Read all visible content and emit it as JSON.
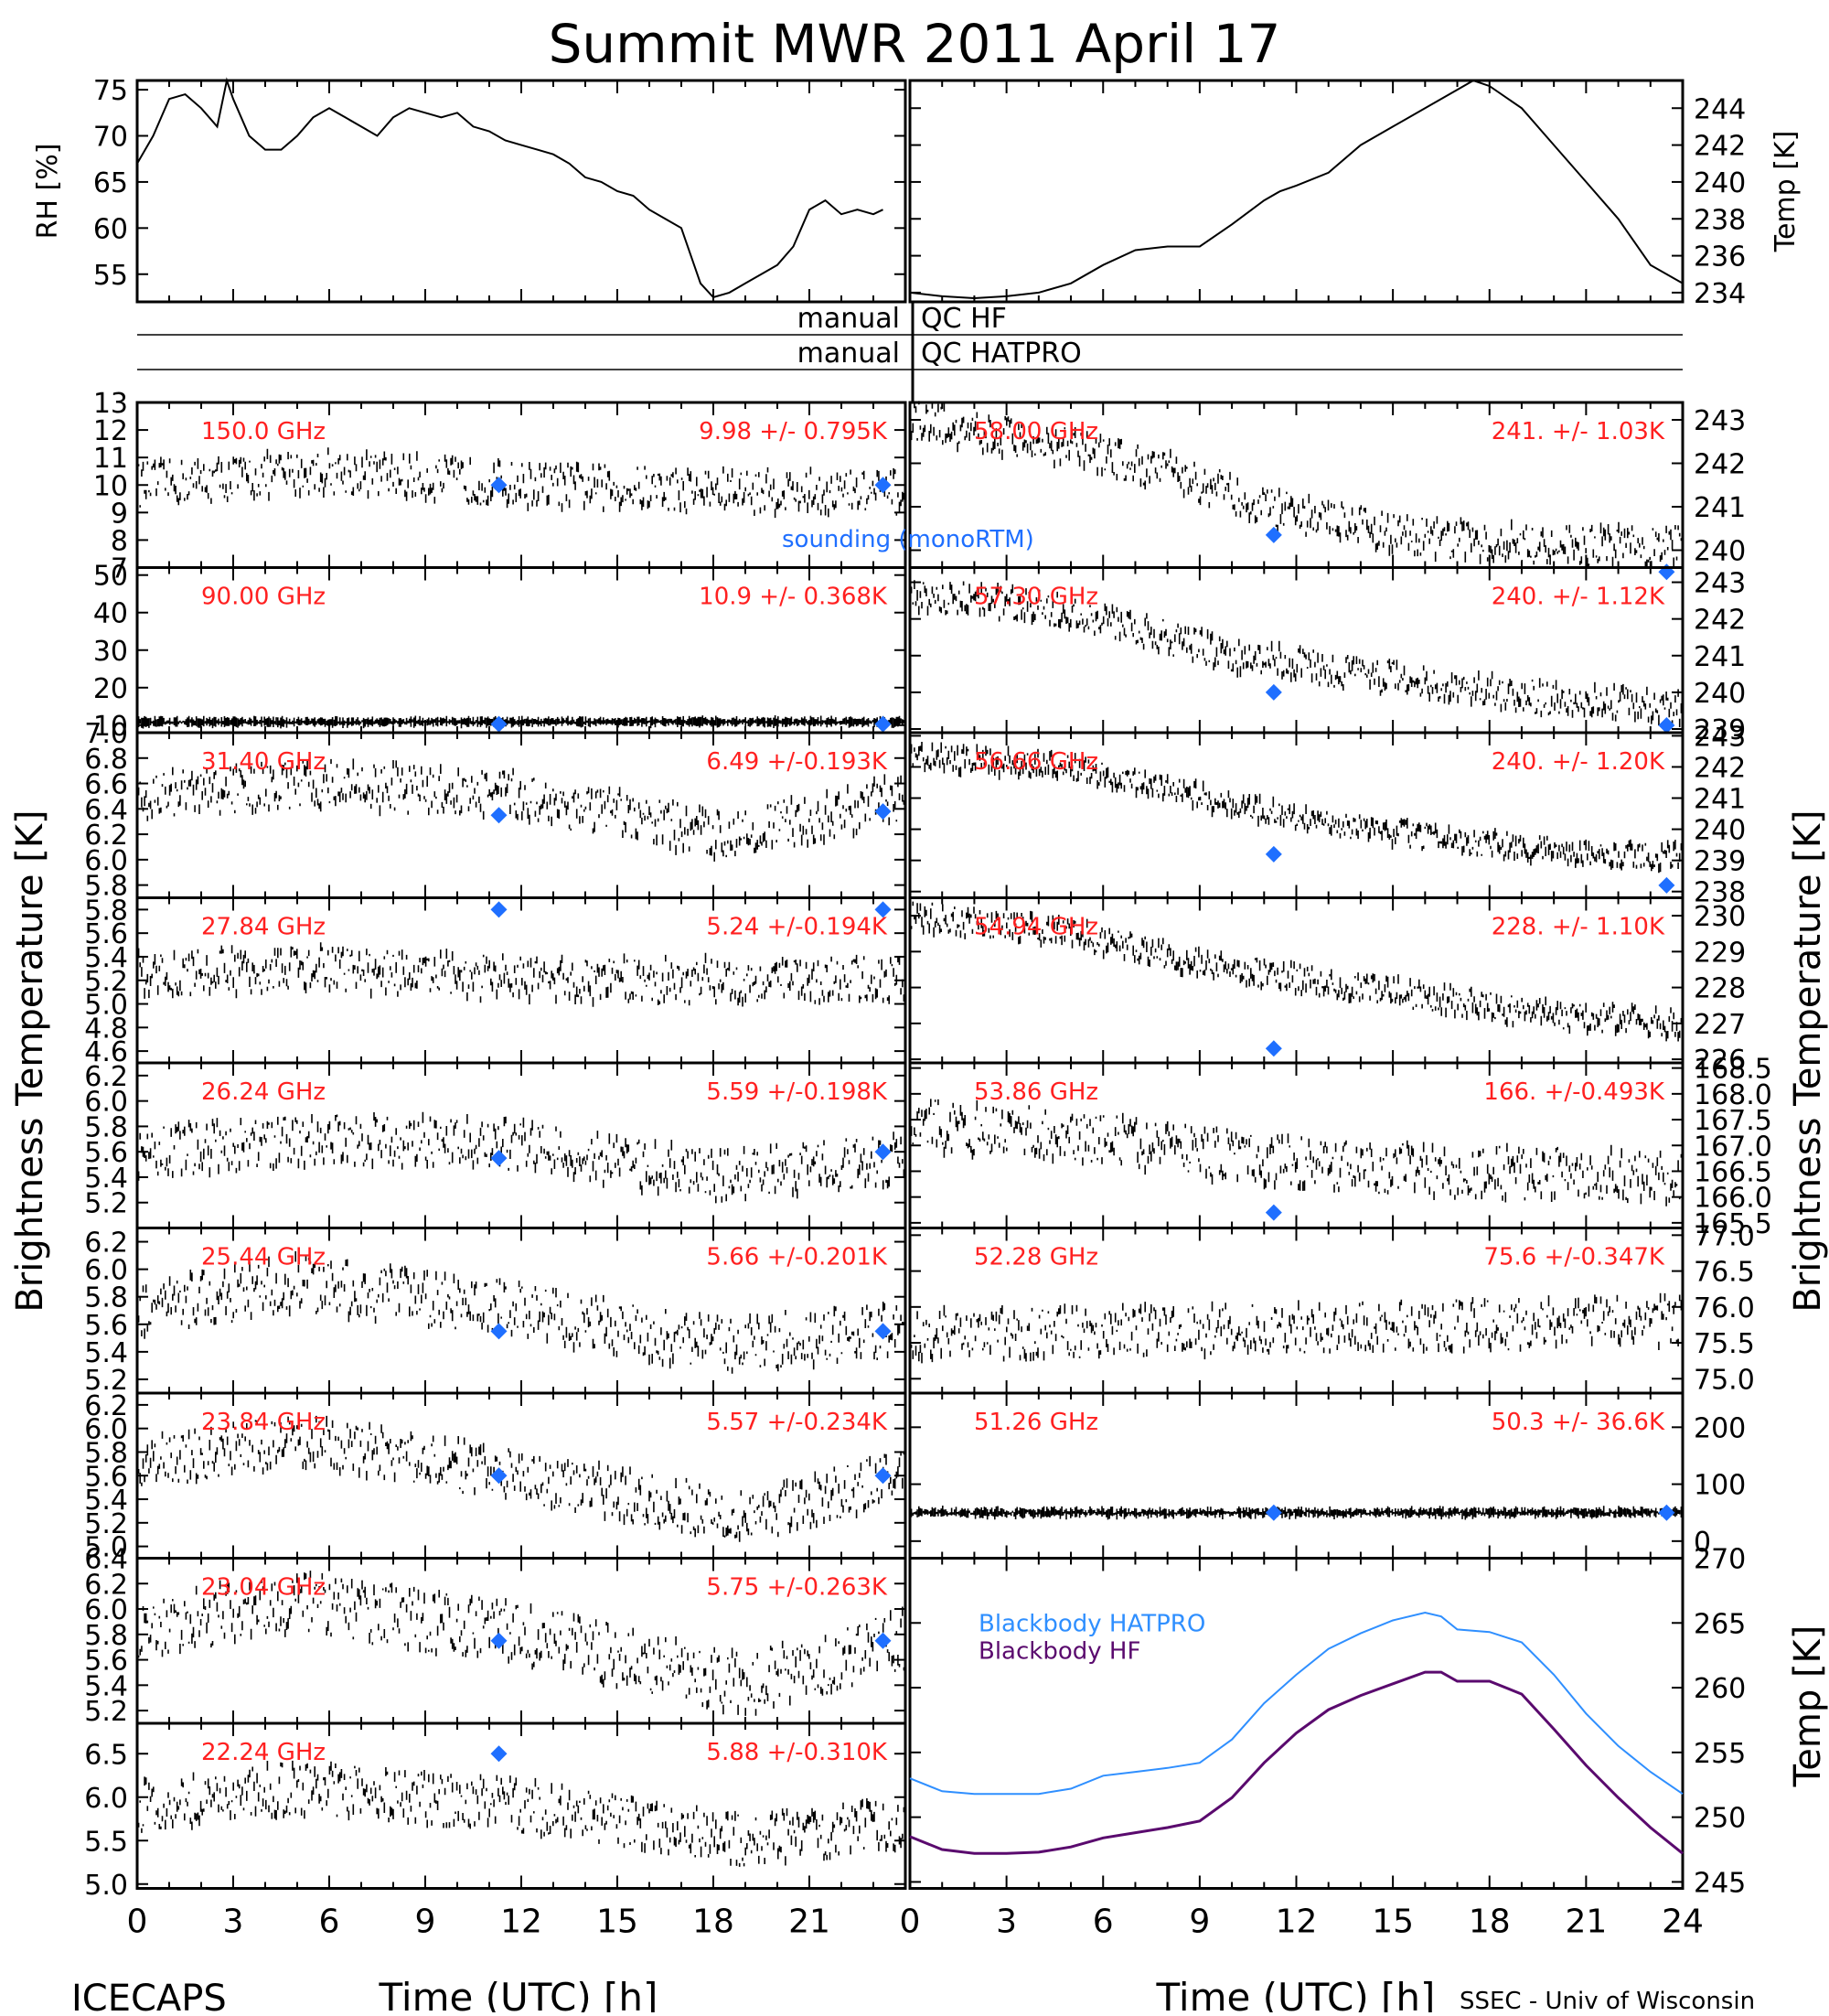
{
  "title": "Summit MWR 2011 April 17",
  "footer": {
    "left": "ICECAPS",
    "right": "SSEC - Univ of Wisconsin"
  },
  "colors": {
    "annotation": "#ff2020",
    "sounding": "#1f6fff",
    "blackbody_hatpro": "#2f8fff",
    "blackbody_hf": "#5a0a6e",
    "trace": "#000000"
  },
  "chart_data": [
    {
      "id": "rh",
      "type": "line",
      "ylabel": "RH [%]",
      "xlim": [
        0,
        24
      ],
      "ylim": [
        52,
        76
      ],
      "yticks": [
        55,
        60,
        65,
        70,
        75
      ],
      "x": [
        0,
        0.5,
        1,
        1.5,
        2,
        2.5,
        2.8,
        3,
        3.5,
        4,
        4.5,
        5,
        5.5,
        6,
        6.5,
        7,
        7.5,
        8,
        8.5,
        9,
        9.5,
        10,
        10.5,
        11,
        11.5,
        12,
        12.5,
        13,
        13.5,
        14,
        14.5,
        15,
        15.5,
        16,
        16.5,
        17,
        17.3,
        17.6,
        18,
        18.5,
        19,
        19.5,
        20,
        20.5,
        21,
        21.5,
        22,
        22.5,
        23,
        23.3
      ],
      "y": [
        67,
        70,
        74,
        74.5,
        73,
        71,
        76,
        74,
        70,
        68.5,
        68.5,
        70,
        72,
        73,
        72,
        71,
        70,
        72,
        73,
        72.5,
        72,
        72.5,
        71,
        70.5,
        69.5,
        69,
        68.5,
        68,
        67,
        65.5,
        65,
        64,
        63.5,
        62,
        61,
        60,
        57,
        54,
        52.5,
        53,
        54,
        55,
        56,
        58,
        62,
        63,
        61.5,
        62,
        61.5,
        62
      ]
    },
    {
      "id": "temp",
      "type": "line",
      "ylabel": "Temp [K]",
      "xlim": [
        0,
        24
      ],
      "ylim": [
        233.5,
        245.5
      ],
      "yticks": [
        234,
        236,
        238,
        240,
        242,
        244
      ],
      "x": [
        0,
        1,
        2,
        3,
        4,
        5,
        6,
        7,
        8,
        9,
        10,
        11,
        11.5,
        12,
        13,
        14,
        15,
        16,
        17,
        17.5,
        18,
        19,
        20,
        21,
        22,
        23,
        24
      ],
      "y": [
        234,
        233.8,
        233.7,
        233.8,
        234,
        234.5,
        235.5,
        236.3,
        236.5,
        236.5,
        237.7,
        239,
        239.5,
        239.8,
        240.5,
        242,
        243,
        244,
        245,
        245.5,
        245.2,
        244,
        242,
        240,
        238,
        235.5,
        234.5
      ]
    },
    {
      "id": "qc",
      "type": "table",
      "rows": [
        "manual",
        "manual"
      ],
      "labels": [
        "QC HF",
        "QC HATPRO"
      ]
    },
    {
      "id": "tb_150",
      "type": "scatter",
      "freq": "150.0 GHz",
      "stat": "9.98 +/- 0.795K",
      "xlim": [
        0,
        24
      ],
      "ylim": [
        7,
        13
      ],
      "yticks": [
        7,
        8,
        9,
        10,
        11,
        12,
        13
      ],
      "anchors": [
        [
          0,
          10
        ],
        [
          6,
          10.5
        ],
        [
          12,
          10
        ],
        [
          18,
          9.8
        ],
        [
          24,
          9.7
        ]
      ],
      "noise": 0.8,
      "sounding": [
        [
          11.3,
          10.0
        ],
        [
          23.3,
          10.0
        ]
      ]
    },
    {
      "id": "tb_90",
      "type": "scatter",
      "freq": "90.00 GHz",
      "stat": "10.9 +/- 0.368K",
      "xlim": [
        0,
        24
      ],
      "ylim": [
        8,
        52
      ],
      "yticks": [
        10,
        20,
        30,
        40,
        50
      ],
      "anchors": [
        [
          0,
          10.8
        ],
        [
          12,
          10.9
        ],
        [
          24,
          10.9
        ]
      ],
      "noise": 0.3,
      "sounding": [
        [
          11.3,
          10.3
        ],
        [
          23.3,
          10.3
        ]
      ]
    },
    {
      "id": "tb_3140",
      "type": "scatter",
      "freq": "31.40 GHz",
      "stat": "6.49 +/-0.193K",
      "xlim": [
        0,
        24
      ],
      "ylim": [
        5.7,
        7.0
      ],
      "yticks": [
        5.8,
        6.0,
        6.2,
        6.4,
        6.6,
        6.8,
        7.0
      ],
      "anchors": [
        [
          0,
          6.5
        ],
        [
          6,
          6.6
        ],
        [
          12,
          6.5
        ],
        [
          18,
          6.2
        ],
        [
          21,
          6.3
        ],
        [
          24,
          6.5
        ]
      ],
      "noise": 0.19,
      "sounding": [
        [
          11.3,
          6.35
        ],
        [
          23.3,
          6.38
        ]
      ]
    },
    {
      "id": "tb_2784",
      "type": "scatter",
      "freq": "27.84 GHz",
      "stat": "5.24 +/-0.194K",
      "xlim": [
        0,
        24
      ],
      "ylim": [
        4.5,
        5.9
      ],
      "yticks": [
        4.6,
        4.8,
        5.0,
        5.2,
        5.4,
        5.6,
        5.8
      ],
      "anchors": [
        [
          0,
          5.25
        ],
        [
          6,
          5.3
        ],
        [
          12,
          5.2
        ],
        [
          18,
          5.2
        ],
        [
          24,
          5.2
        ]
      ],
      "noise": 0.19,
      "sounding": [
        [
          11.3,
          5.8
        ],
        [
          23.3,
          5.8
        ]
      ]
    },
    {
      "id": "tb_2624",
      "type": "scatter",
      "freq": "26.24 GHz",
      "stat": "5.59 +/-0.198K",
      "xlim": [
        0,
        24
      ],
      "ylim": [
        5.0,
        6.3
      ],
      "yticks": [
        5.2,
        5.4,
        5.6,
        5.8,
        6.0,
        6.2
      ],
      "anchors": [
        [
          0,
          5.6
        ],
        [
          6,
          5.7
        ],
        [
          12,
          5.65
        ],
        [
          18,
          5.4
        ],
        [
          24,
          5.55
        ]
      ],
      "noise": 0.2,
      "sounding": [
        [
          11.3,
          5.55
        ],
        [
          23.3,
          5.6
        ]
      ]
    },
    {
      "id": "tb_2544",
      "type": "scatter",
      "freq": "25.44 GHz",
      "stat": "5.66 +/-0.201K",
      "xlim": [
        0,
        24
      ],
      "ylim": [
        5.1,
        6.3
      ],
      "yticks": [
        5.2,
        5.4,
        5.6,
        5.8,
        6.0,
        6.2
      ],
      "anchors": [
        [
          0,
          5.7
        ],
        [
          5,
          5.9
        ],
        [
          12,
          5.7
        ],
        [
          18,
          5.45
        ],
        [
          24,
          5.55
        ]
      ],
      "noise": 0.2,
      "sounding": [
        [
          11.3,
          5.55
        ],
        [
          23.3,
          5.55
        ]
      ]
    },
    {
      "id": "tb_2384",
      "type": "scatter",
      "freq": "23.84 GHz",
      "stat": "5.57 +/-0.234K",
      "xlim": [
        0,
        24
      ],
      "ylim": [
        4.9,
        6.3
      ],
      "yticks": [
        5.0,
        5.2,
        5.4,
        5.6,
        5.8,
        6.0,
        6.2
      ],
      "anchors": [
        [
          0,
          5.7
        ],
        [
          5,
          5.9
        ],
        [
          12,
          5.6
        ],
        [
          19,
          5.25
        ],
        [
          24,
          5.6
        ]
      ],
      "noise": 0.22,
      "sounding": [
        [
          11.3,
          5.6
        ],
        [
          23.3,
          5.6
        ]
      ]
    },
    {
      "id": "tb_2304",
      "type": "scatter",
      "freq": "23.04 GHz",
      "stat": "5.75 +/-0.263K",
      "xlim": [
        0,
        24
      ],
      "ylim": [
        5.1,
        6.4
      ],
      "yticks": [
        5.2,
        5.4,
        5.6,
        5.8,
        6.0,
        6.2,
        6.4
      ],
      "anchors": [
        [
          0,
          5.85
        ],
        [
          5,
          6.05
        ],
        [
          12,
          5.8
        ],
        [
          19,
          5.4
        ],
        [
          24,
          5.75
        ]
      ],
      "noise": 0.24,
      "sounding": [
        [
          11.3,
          5.75
        ],
        [
          23.3,
          5.75
        ]
      ]
    },
    {
      "id": "tb_2224",
      "type": "scatter",
      "freq": "22.24 GHz",
      "stat": "5.88 +/-0.310K",
      "xlim": [
        0,
        24
      ],
      "ylim": [
        4.95,
        6.85
      ],
      "yticks": [
        5.0,
        5.5,
        6.0,
        6.5
      ],
      "anchors": [
        [
          0,
          5.9
        ],
        [
          5,
          6.1
        ],
        [
          12,
          5.9
        ],
        [
          19,
          5.5
        ],
        [
          24,
          5.7
        ]
      ],
      "noise": 0.3,
      "sounding": [
        [
          11.3,
          6.5
        ]
      ]
    },
    {
      "id": "tb_5800",
      "type": "scatter",
      "freq": "58.00 GHz",
      "stat": "241. +/- 1.03K",
      "xlim": [
        0,
        24
      ],
      "ylim": [
        239.6,
        243.4
      ],
      "yticks": [
        240,
        241,
        242,
        243
      ],
      "anchors": [
        [
          0,
          243
        ],
        [
          4,
          242.5
        ],
        [
          8,
          241.8
        ],
        [
          12,
          240.8
        ],
        [
          16,
          240.3
        ],
        [
          20,
          240.1
        ],
        [
          24,
          240.1
        ]
      ],
      "noise": 0.45,
      "sounding": [
        [
          11.3,
          240.35
        ],
        [
          23.5,
          239.5
        ]
      ]
    },
    {
      "id": "tb_5730",
      "type": "scatter",
      "freq": "57.30 GHz",
      "stat": "240. +/- 1.12K",
      "xlim": [
        0,
        24
      ],
      "ylim": [
        238.9,
        243.4
      ],
      "yticks": [
        239,
        240,
        241,
        242,
        243
      ],
      "anchors": [
        [
          0,
          242.7
        ],
        [
          5,
          242.2
        ],
        [
          10,
          241
        ],
        [
          14,
          240.5
        ],
        [
          20,
          239.8
        ],
        [
          24,
          239.6
        ]
      ],
      "noise": 0.45,
      "sounding": [
        [
          11.3,
          240.0
        ],
        [
          23.5,
          239.1
        ]
      ]
    },
    {
      "id": "tb_5666",
      "type": "scatter",
      "freq": "56.66 GHz",
      "stat": "240. +/- 1.20K",
      "xlim": [
        0,
        24
      ],
      "ylim": [
        237.8,
        243.1
      ],
      "yticks": [
        238,
        239,
        240,
        241,
        242,
        243
      ],
      "anchors": [
        [
          0,
          242.3
        ],
        [
          5,
          242
        ],
        [
          10,
          240.8
        ],
        [
          14,
          240
        ],
        [
          20,
          239.3
        ],
        [
          24,
          239.1
        ]
      ],
      "noise": 0.4,
      "sounding": [
        [
          11.3,
          239.2
        ],
        [
          23.5,
          238.2
        ]
      ]
    },
    {
      "id": "tb_5482",
      "type": "scatter",
      "freq": "54.94 GHz",
      "stat": "228. +/- 1.10K",
      "xlim": [
        0,
        24
      ],
      "ylim": [
        225.9,
        230.5
      ],
      "yticks": [
        226,
        227,
        228,
        229,
        230
      ],
      "anchors": [
        [
          0,
          230
        ],
        [
          5,
          229.5
        ],
        [
          10,
          228.5
        ],
        [
          14,
          228
        ],
        [
          20,
          227.2
        ],
        [
          24,
          227
        ]
      ],
      "noise": 0.4,
      "sounding": [
        [
          11.3,
          226.3
        ]
      ]
    },
    {
      "id": "tb_5386",
      "type": "scatter",
      "freq": "53.86 GHz",
      "stat": "166. +/-0.493K",
      "xlim": [
        0,
        24
      ],
      "ylim": [
        165.4,
        168.6
      ],
      "yticks": [
        165.5,
        166.0,
        166.5,
        167.0,
        167.5,
        168.0,
        168.5
      ],
      "anchors": [
        [
          0,
          167.4
        ],
        [
          5,
          167.2
        ],
        [
          11,
          166.7
        ],
        [
          16,
          166.5
        ],
        [
          24,
          166.4
        ]
      ],
      "noise": 0.5,
      "sounding": [
        [
          11.3,
          165.7
        ]
      ]
    },
    {
      "id": "tb_5228",
      "type": "scatter",
      "freq": "52.28 GHz",
      "stat": "75.6 +/-0.347K",
      "xlim": [
        0,
        24
      ],
      "ylim": [
        74.8,
        77.1
      ],
      "yticks": [
        75.0,
        75.5,
        76.0,
        76.5,
        77.0
      ],
      "anchors": [
        [
          0,
          75.6
        ],
        [
          12,
          75.7
        ],
        [
          24,
          75.8
        ]
      ],
      "noise": 0.35,
      "sounding": []
    },
    {
      "id": "tb_5126",
      "type": "scatter",
      "freq": "51.26 GHz",
      "stat": "50.3 +/- 36.6K",
      "xlim": [
        0,
        24
      ],
      "ylim": [
        -30,
        260
      ],
      "yticks": [
        0,
        100,
        200
      ],
      "anchors": [
        [
          0,
          50
        ],
        [
          24,
          50
        ]
      ],
      "noise": 3,
      "sounding": [
        [
          11.3,
          50
        ],
        [
          23.5,
          50
        ]
      ]
    },
    {
      "id": "blackbody",
      "type": "line",
      "ylabel": "Temp [K]",
      "xlabel": "Time (UTC) [h]",
      "xlim": [
        0,
        24
      ],
      "ylim": [
        244.5,
        270
      ],
      "yticks": [
        245,
        250,
        255,
        260,
        265,
        270
      ],
      "series": [
        {
          "name": "Blackbody HATPRO",
          "x": [
            0,
            1,
            2,
            3,
            4,
            5,
            6,
            7,
            8,
            9,
            10,
            11,
            12,
            13,
            14,
            15,
            16,
            16.5,
            17,
            18,
            19,
            20,
            21,
            22,
            23,
            24
          ],
          "y": [
            253,
            252,
            251.8,
            251.8,
            251.8,
            252.2,
            253.2,
            253.5,
            253.8,
            254.2,
            256,
            258.8,
            261,
            263,
            264.2,
            265.2,
            265.8,
            265.5,
            264.5,
            264.3,
            263.5,
            261,
            258,
            255.5,
            253.5,
            251.8
          ]
        },
        {
          "name": "Blackbody HF",
          "x": [
            0,
            1,
            2,
            3,
            4,
            5,
            6,
            7,
            8,
            9,
            10,
            11,
            12,
            13,
            14,
            15,
            16,
            16.5,
            17,
            18,
            19,
            20,
            21,
            22,
            23,
            24
          ],
          "y": [
            248.5,
            247.5,
            247.2,
            247.2,
            247.3,
            247.7,
            248.4,
            248.8,
            249.2,
            249.7,
            251.5,
            254.2,
            256.5,
            258.3,
            259.4,
            260.3,
            261.2,
            261.2,
            260.5,
            260.5,
            259.5,
            256.8,
            254,
            251.5,
            249.2,
            247.2
          ]
        }
      ]
    }
  ],
  "axes": {
    "xticks": [
      0,
      3,
      6,
      9,
      12,
      15,
      18,
      21,
      24
    ],
    "xticklabels_left": [
      "0",
      "3",
      "6",
      "9",
      "12",
      "15",
      "18",
      "21"
    ],
    "xticklabels_right": [
      "0",
      "3",
      "6",
      "9",
      "12",
      "15",
      "18",
      "21",
      "24"
    ],
    "xlabel": "Time (UTC) [h]",
    "ylabel_left": "Brightness Temperature [K]",
    "ylabel_right": "Brightness Temperature [K]",
    "sounding_label": "sounding (monoRTM)"
  }
}
